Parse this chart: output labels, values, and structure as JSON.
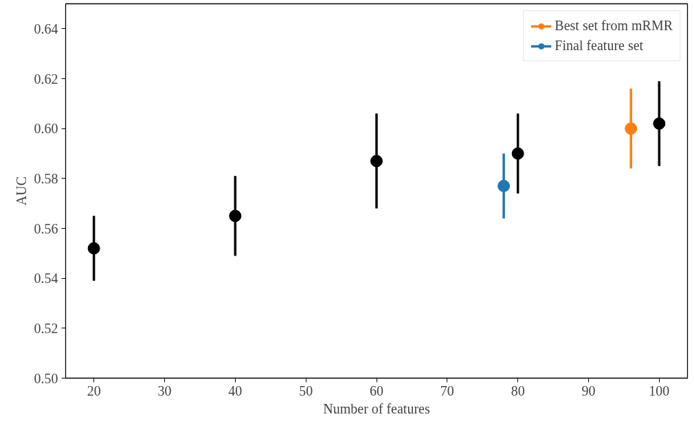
{
  "chart_data": {
    "type": "scatter",
    "xlabel": "Number of features",
    "ylabel": "AUC",
    "xlim": [
      16,
      104
    ],
    "ylim": [
      0.5,
      0.65
    ],
    "xticks": [
      20,
      30,
      40,
      50,
      60,
      70,
      80,
      90,
      100
    ],
    "yticks": [
      {
        "value": 0.5,
        "label": "0.50"
      },
      {
        "value": 0.52,
        "label": "0.52"
      },
      {
        "value": 0.54,
        "label": "0.54"
      },
      {
        "value": 0.56,
        "label": "0.56"
      },
      {
        "value": 0.58,
        "label": "0.58"
      },
      {
        "value": 0.6,
        "label": "0.60"
      },
      {
        "value": 0.62,
        "label": "0.62"
      },
      {
        "value": 0.64,
        "label": "0.64"
      }
    ],
    "grid": false,
    "legend": "top right",
    "marker": "circle",
    "series": [
      {
        "color": "#000000",
        "x": [
          20,
          40,
          60,
          80,
          100
        ],
        "values": [
          0.552,
          0.565,
          0.587,
          0.59,
          0.602
        ],
        "errors": [
          0.013,
          0.016,
          0.019,
          0.016,
          0.017
        ]
      },
      {
        "name": "Best set from mRMR",
        "color": "#ff7f0e",
        "x": [
          96
        ],
        "values": [
          0.6
        ],
        "errors": [
          0.016
        ]
      },
      {
        "name": "Final feature set",
        "color": "#1f77b4",
        "x": [
          78
        ],
        "values": [
          0.577
        ],
        "errors": [
          0.013
        ]
      }
    ]
  }
}
